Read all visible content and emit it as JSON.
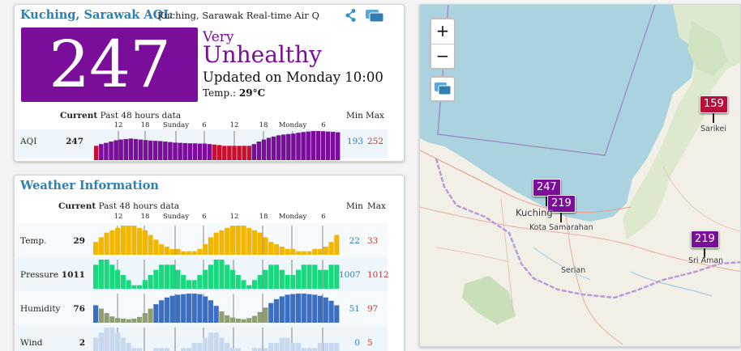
{
  "aqi_card": {
    "title": "Kuching, Sarawak AQI:",
    "subtitle": "Kuching, Sarawak Real-time Air Qu",
    "aqi_value": "247",
    "level_prefix": "Very",
    "level": "Unhealthy",
    "updated": "Updated on Monday 10:00",
    "temp_label": "Temp.:",
    "temp_value": "29°C",
    "color": "#7a0d99",
    "history_header": {
      "current": "Current",
      "past": "Past 48 hours data",
      "min": "Min",
      "max": "Max"
    },
    "ticks": [
      "12",
      "18",
      "Sunday",
      "6",
      "12",
      "18",
      "Monday",
      "6"
    ],
    "row": {
      "label": "AQI",
      "current": "247",
      "min": "193",
      "max": "252",
      "values": [
        193,
        200,
        205,
        210,
        215,
        218,
        220,
        222,
        220,
        218,
        216,
        214,
        213,
        212,
        210,
        208,
        206,
        205,
        204,
        203,
        203,
        202,
        202,
        200,
        198,
        196,
        193,
        193,
        193,
        193,
        193,
        193,
        200,
        210,
        218,
        225,
        230,
        235,
        238,
        240,
        242,
        245,
        248,
        250,
        252,
        252,
        251,
        250,
        249,
        247
      ]
    }
  },
  "weather_card": {
    "title": "Weather Information",
    "history_header": {
      "current": "Current",
      "past": "Past 48 hours data",
      "min": "Min",
      "max": "Max"
    },
    "ticks": [
      "12",
      "18",
      "Sunday",
      "6",
      "12",
      "18",
      "Monday",
      "6"
    ],
    "rows": [
      {
        "label": "Temp.",
        "current": "29",
        "min": "22",
        "max": "33",
        "values": [
          26,
          28,
          30,
          31,
          32,
          33,
          33,
          33,
          32,
          31,
          29,
          27,
          25,
          24,
          23,
          23,
          22,
          22,
          22,
          23,
          25,
          28,
          30,
          31,
          32,
          33,
          33,
          33,
          32,
          31,
          30,
          28,
          26,
          25,
          24,
          23,
          23,
          22,
          22,
          22,
          23,
          23,
          24,
          26,
          29
        ]
      },
      {
        "label": "Pressure",
        "current": "1011",
        "min": "1007",
        "max": "1012",
        "values": [
          1011,
          1012,
          1012,
          1011,
          1010,
          1009,
          1008,
          1007,
          1007,
          1008,
          1009,
          1010,
          1011,
          1011,
          1011,
          1010,
          1009,
          1008,
          1008,
          1009,
          1010,
          1011,
          1012,
          1012,
          1011,
          1010,
          1009,
          1008,
          1007,
          1008,
          1009,
          1010,
          1011,
          1011,
          1010,
          1009,
          1009,
          1010,
          1011,
          1011,
          1011,
          1010,
          1010,
          1011,
          1011
        ]
      },
      {
        "label": "Humidity",
        "current": "76",
        "min": "51",
        "max": "97",
        "values": [
          76,
          70,
          62,
          56,
          53,
          52,
          51,
          52,
          55,
          62,
          70,
          78,
          85,
          90,
          93,
          95,
          96,
          97,
          97,
          96,
          92,
          85,
          75,
          65,
          58,
          54,
          52,
          51,
          53,
          57,
          64,
          72,
          80,
          87,
          92,
          95,
          96,
          97,
          97,
          96,
          95,
          93,
          90,
          84,
          76
        ]
      },
      {
        "label": "Wind",
        "current": "2",
        "min": "0",
        "max": "5",
        "values": [
          3,
          4,
          5,
          5,
          4,
          3,
          2,
          1,
          1,
          0,
          0,
          1,
          1,
          1,
          0,
          0,
          1,
          1,
          2,
          2,
          3,
          4,
          4,
          3,
          2,
          1,
          1,
          0,
          0,
          1,
          1,
          1,
          2,
          2,
          3,
          3,
          2,
          2,
          1,
          1,
          1,
          2,
          2,
          2,
          2
        ]
      }
    ]
  },
  "map": {
    "zoom_in": "+",
    "zoom_out": "−",
    "markers": [
      {
        "value": "159",
        "color": "#b80f3a"
      },
      {
        "value": "247",
        "color": "#7a0d99"
      },
      {
        "value": "219",
        "color": "#7a0d99"
      },
      {
        "value": "219",
        "color": "#7a0d99"
      }
    ],
    "towns": [
      "Sarikei",
      "Kuching",
      "Kota Samarahan",
      "Serian",
      "Sri Aman"
    ]
  },
  "palette": {
    "aqi_very_unhealthy": "#7a0d99",
    "aqi_unhealthy": "#b80f3a",
    "aqi_low_bar": "#c8102e",
    "temp_bar": "#f2b600",
    "pressure_bar": "#19d97e",
    "humidity_bar_low": "#8f9e73",
    "humidity_bar_high": "#3c6fc2",
    "wind_bar": "#c8d8ee",
    "accent": "#2f7fb3"
  }
}
